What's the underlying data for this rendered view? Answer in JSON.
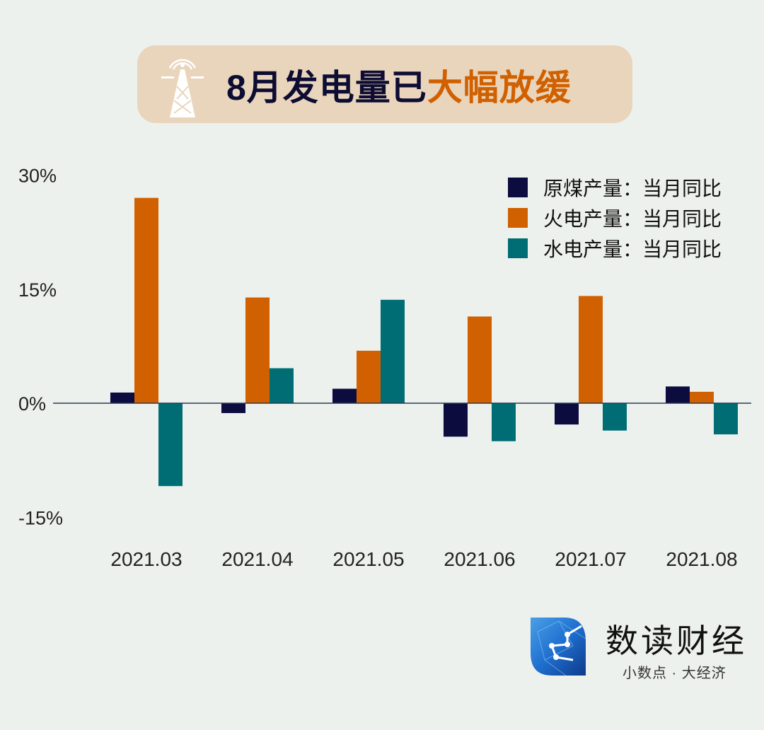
{
  "title": {
    "prefix": "8月发电量已",
    "highlight": "大幅放缓",
    "highlight_color": "#d06000",
    "icon": "transmission-tower-icon"
  },
  "chart_data": {
    "type": "bar",
    "categories": [
      "2021.03",
      "2021.04",
      "2021.05",
      "2021.06",
      "2021.07",
      "2021.08"
    ],
    "series": [
      {
        "name": "原煤产量：当月同比",
        "color": "#0d0c3f",
        "values": [
          1.4,
          -1.3,
          1.9,
          -4.4,
          -2.8,
          2.2
        ]
      },
      {
        "name": "火电产量：当月同比",
        "color": "#d06000",
        "values": [
          27.0,
          13.9,
          6.9,
          11.4,
          14.1,
          1.5
        ]
      },
      {
        "name": "水电产量：当月同比",
        "color": "#006d75",
        "values": [
          -10.9,
          4.6,
          13.6,
          -5.0,
          -3.6,
          -4.1
        ]
      }
    ],
    "yticks": [
      "30%",
      "15%",
      "0%",
      "-15%"
    ],
    "ytick_values": [
      30,
      15,
      0,
      -15
    ],
    "ylim": [
      -15,
      30
    ],
    "unit": "%",
    "grid": false,
    "legend_position": "top-right"
  },
  "footer": {
    "brand": "数读财经",
    "slogan": "小数点 · 大经济"
  }
}
